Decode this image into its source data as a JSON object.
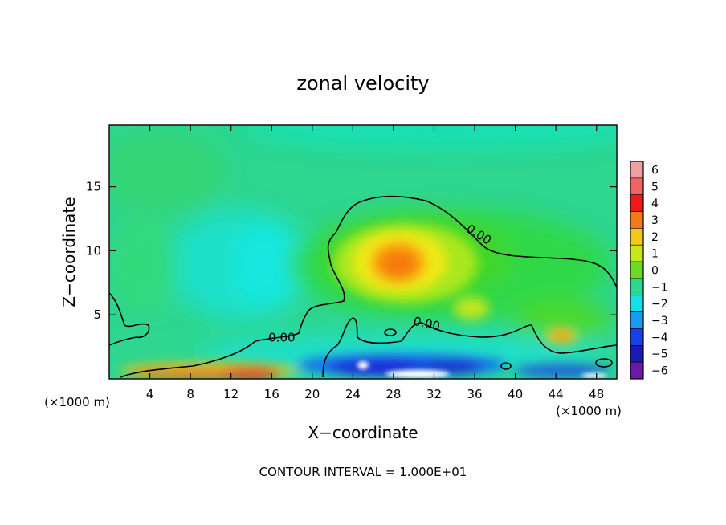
{
  "chart_data": {
    "type": "heatmap",
    "title": "zonal velocity",
    "xlabel": "X−coordinate",
    "ylabel": "Z−coordinate",
    "x_unit": "(×1000 m)",
    "x_unit_right": "(×1000 m)",
    "x_ticks": [
      4,
      8,
      12,
      16,
      20,
      24,
      28,
      32,
      36,
      40,
      44,
      48
    ],
    "y_ticks": [
      5,
      10,
      15
    ],
    "xlim": [
      0,
      50
    ],
    "ylim": [
      0,
      19.8
    ],
    "colorbar": {
      "labels": [
        "6",
        "5",
        "4",
        "3",
        "2",
        "1",
        "0",
        "−1",
        "−2",
        "−3",
        "−4",
        "−5",
        "−6"
      ],
      "range": [
        -6,
        6
      ]
    },
    "contour_labels": [
      {
        "text": "0.00",
        "x": 17.0,
        "y": 2.9
      },
      {
        "text": "0.00",
        "x": 31.2,
        "y": 4.0
      },
      {
        "text": "0.00",
        "x": 36.2,
        "y": 11.0
      }
    ],
    "features": [
      {
        "name": "upper max",
        "x": 28.6,
        "y": 9.0,
        "value": 3.2
      },
      {
        "name": "right max",
        "x": 44.6,
        "y": 3.4,
        "value": 3.0
      },
      {
        "name": "mid max",
        "x": 35.5,
        "y": 5.6,
        "value": 1.8
      },
      {
        "name": "near-surface max",
        "x": 10.5,
        "y": 0.6,
        "value": 4.5
      },
      {
        "name": "near-surface min",
        "x": 27.5,
        "y": 0.7,
        "value": -5.5
      },
      {
        "name": "mid-level min",
        "x": 15.0,
        "y": 8.5,
        "value": -1.5
      }
    ],
    "footnote": "CONTOUR INTERVAL = 1.000E+01"
  }
}
